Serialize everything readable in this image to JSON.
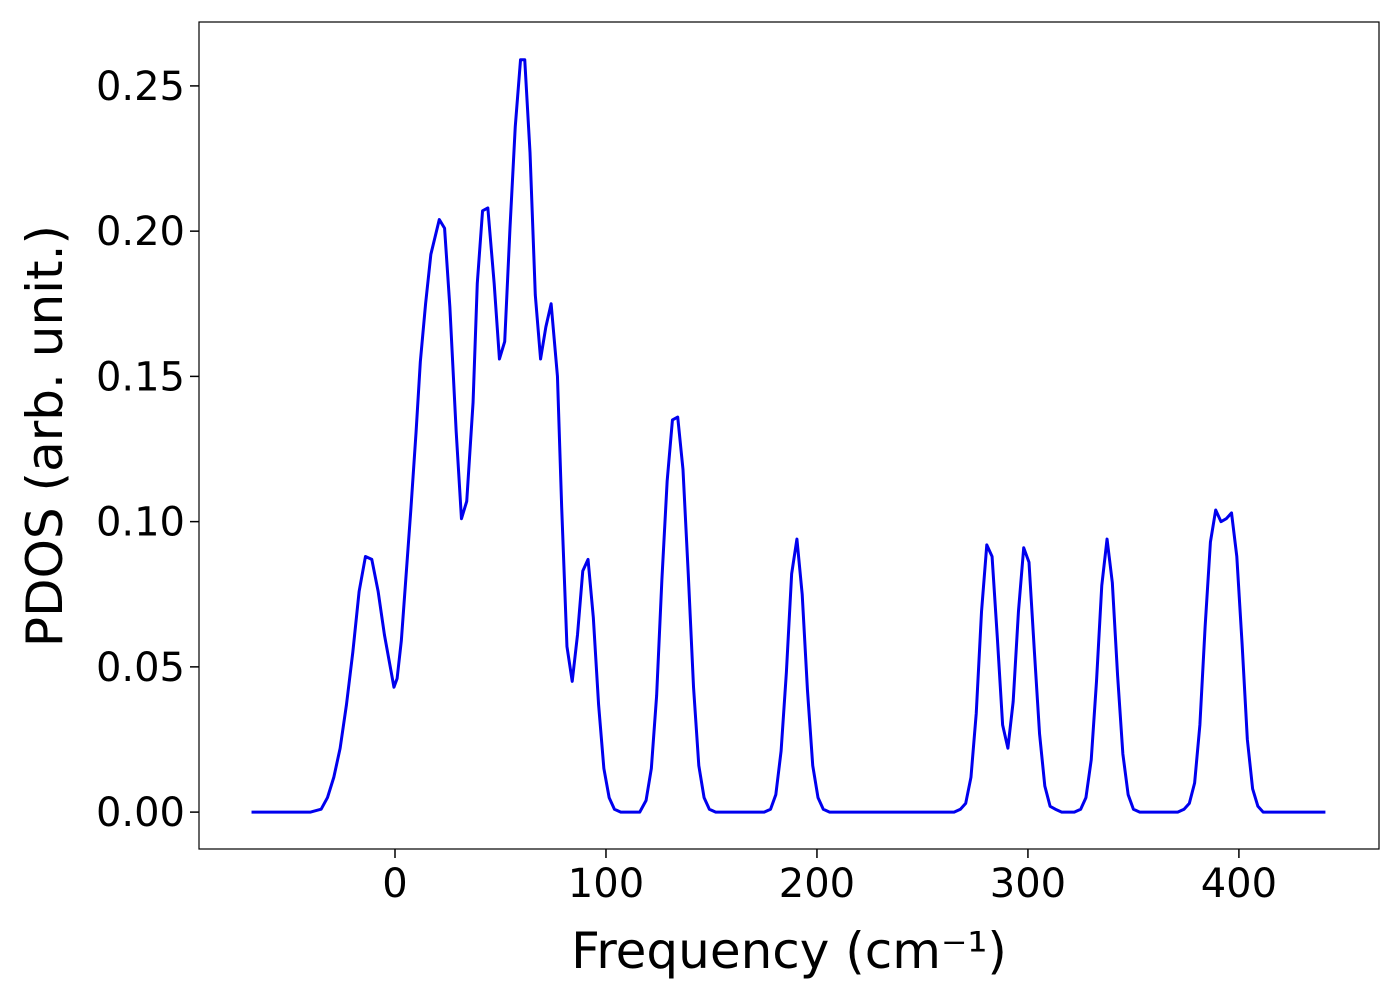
{
  "chart_data": {
    "type": "line",
    "xlabel": "Frequency (cm⁻¹)",
    "ylabel": "PDOS (arb. unit.)",
    "xlim": [
      -92.9,
      466.4
    ],
    "ylim": [
      -0.0127,
      0.272
    ],
    "xticks": [
      0,
      100,
      200,
      300,
      400
    ],
    "yticks": [
      {
        "value": 0,
        "label": "0.00"
      },
      {
        "value": 0.05,
        "label": "0.05"
      },
      {
        "value": 0.1,
        "label": "0.10"
      },
      {
        "value": 0.15,
        "label": "0.15"
      },
      {
        "value": 0.2,
        "label": "0.20"
      },
      {
        "value": 0.25,
        "label": "0.25"
      }
    ],
    "x": [
      -68,
      -40,
      -35,
      -32,
      -29,
      -26,
      -23,
      -20,
      -17,
      -14,
      -11,
      -8,
      -5,
      -2,
      -0.5,
      1,
      3,
      5,
      7.5,
      10,
      12,
      14.5,
      17,
      21,
      23.5,
      26,
      29,
      31.5,
      34,
      37,
      39,
      41.5,
      44,
      47,
      49.5,
      52,
      54.5,
      57,
      59.5,
      61.5,
      64,
      66.5,
      69,
      71.5,
      74,
      77,
      79,
      81.5,
      84,
      86.5,
      89,
      91.5,
      94,
      96.5,
      99,
      101.5,
      104,
      107,
      116,
      119,
      121.5,
      124,
      126.5,
      129,
      131.5,
      134,
      136.5,
      139,
      141.5,
      144,
      146.5,
      149,
      152,
      175,
      178,
      180.5,
      183,
      185.5,
      188,
      190.5,
      193,
      195.5,
      198,
      200.5,
      203,
      206,
      265,
      268,
      270.5,
      273,
      275.5,
      278,
      280.5,
      283,
      285.5,
      288,
      290.5,
      293,
      295.5,
      298,
      300.5,
      303,
      305.5,
      308,
      310.5,
      313,
      316,
      322,
      325,
      327.5,
      330,
      332.5,
      335,
      337.5,
      340,
      342.5,
      345,
      347.5,
      350,
      353,
      371,
      374,
      376.5,
      379,
      381.5,
      384,
      386.5,
      389,
      391.5,
      394,
      396.5,
      399,
      401.5,
      404,
      406.5,
      409,
      411.5,
      441
    ],
    "series": [
      {
        "color": "#0000ee",
        "values": [
          0,
          0,
          0.001,
          0.005,
          0.012,
          0.022,
          0.037,
          0.055,
          0.076,
          0.088,
          0.087,
          0.076,
          0.061,
          0.049,
          0.043,
          0.046,
          0.059,
          0.079,
          0.104,
          0.131,
          0.155,
          0.175,
          0.192,
          0.204,
          0.201,
          0.174,
          0.131,
          0.101,
          0.107,
          0.141,
          0.182,
          0.207,
          0.208,
          0.182,
          0.156,
          0.162,
          0.201,
          0.236,
          0.259,
          0.259,
          0.227,
          0.178,
          0.156,
          0.167,
          0.175,
          0.15,
          0.105,
          0.057,
          0.045,
          0.061,
          0.083,
          0.087,
          0.067,
          0.037,
          0.015,
          0.005,
          0.001,
          0,
          0,
          0.004,
          0.015,
          0.04,
          0.08,
          0.114,
          0.135,
          0.136,
          0.118,
          0.082,
          0.043,
          0.016,
          0.005,
          0.001,
          0,
          0,
          0.001,
          0.006,
          0.021,
          0.048,
          0.082,
          0.094,
          0.075,
          0.042,
          0.016,
          0.005,
          0.001,
          0,
          0,
          0.001,
          0.003,
          0.012,
          0.034,
          0.069,
          0.092,
          0.088,
          0.06,
          0.03,
          0.022,
          0.038,
          0.069,
          0.091,
          0.086,
          0.056,
          0.027,
          0.009,
          0.002,
          0.001,
          0,
          0,
          0.001,
          0.005,
          0.018,
          0.045,
          0.078,
          0.094,
          0.079,
          0.047,
          0.02,
          0.006,
          0.001,
          0,
          0,
          0.001,
          0.003,
          0.01,
          0.03,
          0.064,
          0.093,
          0.104,
          0.1,
          0.101,
          0.103,
          0.088,
          0.058,
          0.025,
          0.008,
          0.002,
          0,
          0
        ]
      }
    ]
  }
}
